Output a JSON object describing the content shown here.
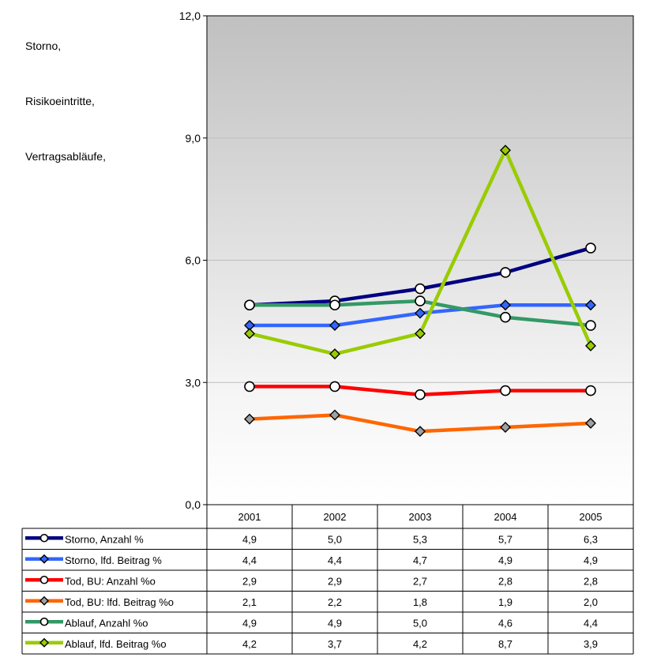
{
  "side_labels": [
    "Storno,",
    "Risikoeintritte,",
    "Vertragsabläufe,"
  ],
  "chart_data": {
    "type": "line",
    "categories": [
      "2001",
      "2002",
      "2003",
      "2004",
      "2005"
    ],
    "ylim": [
      0,
      12
    ],
    "yticks": [
      "0,0",
      "3,0",
      "6,0",
      "9,0",
      "12,0"
    ],
    "grid": true,
    "legend": "data-table",
    "series": [
      {
        "name": "Storno, Anzahl %",
        "values": [
          4.9,
          5.0,
          5.3,
          5.7,
          6.3
        ],
        "display": [
          "4,9",
          "5,0",
          "5,3",
          "5,7",
          "6,3"
        ],
        "color": "#000080",
        "marker": "circle"
      },
      {
        "name": "Storno, lfd. Beitrag %",
        "values": [
          4.4,
          4.4,
          4.7,
          4.9,
          4.9
        ],
        "display": [
          "4,4",
          "4,4",
          "4,7",
          "4,9",
          "4,9"
        ],
        "color": "#3366FF",
        "marker": "diamond"
      },
      {
        "name": "Tod, BU: Anzahl %o",
        "values": [
          2.9,
          2.9,
          2.7,
          2.8,
          2.8
        ],
        "display": [
          "2,9",
          "2,9",
          "2,7",
          "2,8",
          "2,8"
        ],
        "color": "#FF0000",
        "marker": "circle"
      },
      {
        "name": "Tod, BU: lfd. Beitrag %o",
        "values": [
          2.1,
          2.2,
          1.8,
          1.9,
          2.0
        ],
        "display": [
          "2,1",
          "2,2",
          "1,8",
          "1,9",
          "2,0"
        ],
        "color": "#FF6600",
        "marker": "diamond-gray"
      },
      {
        "name": "Ablauf, Anzahl %o",
        "values": [
          4.9,
          4.9,
          5.0,
          4.6,
          4.4
        ],
        "display": [
          "4,9",
          "4,9",
          "5,0",
          "4,6",
          "4,4"
        ],
        "color": "#339966",
        "marker": "circle"
      },
      {
        "name": "Ablauf, lfd. Beitrag %o",
        "values": [
          4.2,
          3.7,
          4.2,
          8.7,
          3.9
        ],
        "display": [
          "4,2",
          "3,7",
          "4,2",
          "8,7",
          "3,9"
        ],
        "color": "#99CC00",
        "marker": "diamond"
      }
    ]
  }
}
